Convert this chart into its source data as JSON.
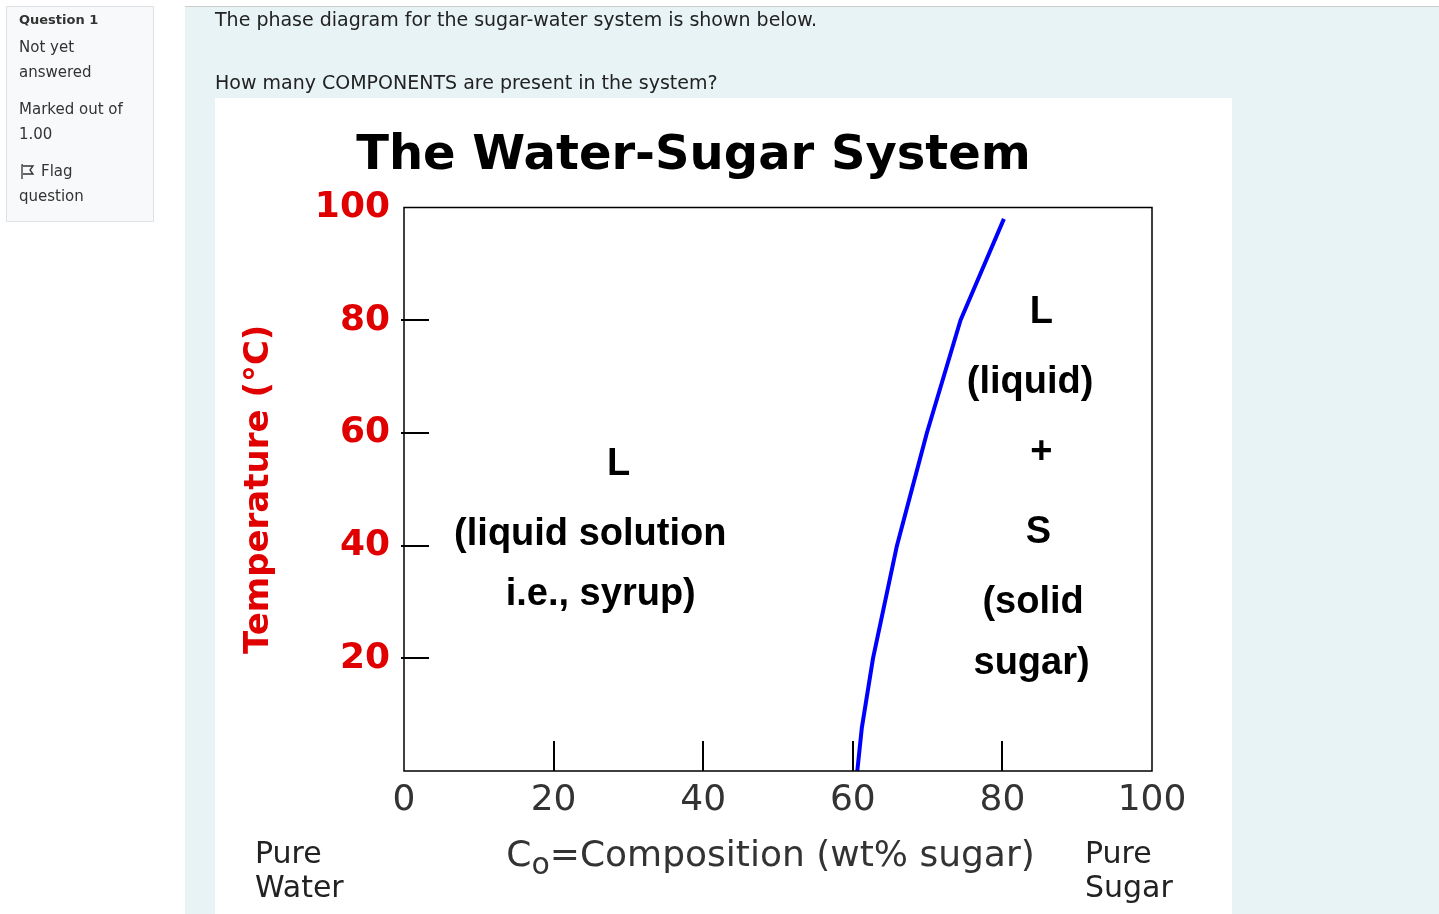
{
  "chart_data": {
    "type": "line",
    "title": "The Water-Sugar System",
    "xlabel": "C$_{o}$=Composition (wt% sugar)",
    "ylabel": "Temperature (°C)",
    "x": [
      60.6,
      61.2,
      62.7,
      65.9,
      69.9,
      74.4,
      80.2
    ],
    "series": [
      {
        "color": "#0000ff",
        "values": [
          0,
          7.6,
          20,
          40,
          60,
          80,
          98
        ]
      }
    ],
    "xlim": [
      0,
      100
    ],
    "ylim": [
      0,
      100
    ],
    "xticks": [
      0,
      20,
      40,
      60,
      80,
      100
    ],
    "yticks": [
      20,
      40,
      60,
      80,
      100
    ],
    "grid": false,
    "legend": false,
    "marker": "none",
    "line_style": "solid",
    "annotations": [
      "Question 1",
      "Not yet answered",
      "Marked out of 1.00",
      "Flag question",
      "The phase diagram for the sugar-water system is shown below.",
      "How many COMPONENTS are present in the system?",
      "Pure Water",
      "Pure Sugar",
      "L",
      "(liquid solution",
      "i.e., syrup)",
      "L",
      "(liquid)",
      "+",
      "S",
      "(solid",
      "sugar)"
    ]
  }
}
